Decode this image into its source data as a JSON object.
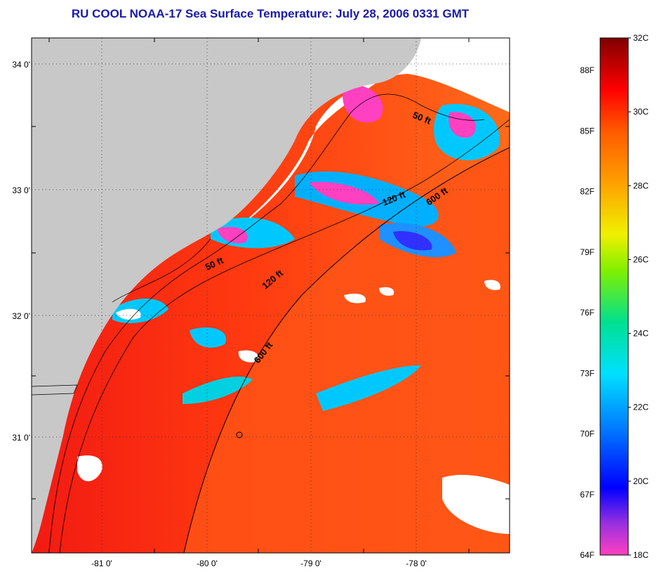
{
  "title": "RU COOL  NOAA-17  Sea Surface Temperature:  July 28, 2006 0331 GMT",
  "map": {
    "lat_ticks": [
      "34 0'",
      "33 0'",
      "32 0'",
      "31 0'"
    ],
    "lon_ticks": [
      "-81 0'",
      "-80 0'",
      "-79 0'",
      "-78 0'"
    ],
    "contours": [
      {
        "label": "50 ft"
      },
      {
        "label": "50 ft"
      },
      {
        "label": "120 ft"
      },
      {
        "label": "120 ft"
      },
      {
        "label": "600 ft"
      },
      {
        "label": "600 ft"
      }
    ],
    "colors": {
      "land": "#c8c8c8",
      "cloud": "#ffffff",
      "warm_water": "#ff3c14",
      "cool_water": "#00c8ff"
    }
  },
  "colorbar": {
    "fahrenheit_ticks": [
      "88F",
      "85F",
      "82F",
      "79F",
      "76F",
      "73F",
      "70F",
      "67F",
      "64F"
    ],
    "celsius_ticks": [
      "32C",
      "30C",
      "28C",
      "26C",
      "24C",
      "22C",
      "20C",
      "18C"
    ]
  }
}
